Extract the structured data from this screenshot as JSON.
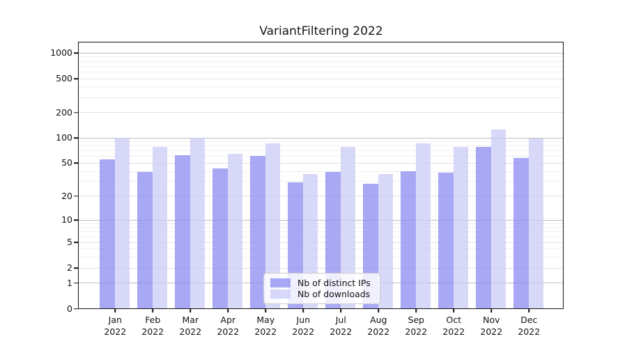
{
  "chart_data": {
    "type": "bar",
    "title": "VariantFiltering 2022",
    "categories": [
      "Jan",
      "Feb",
      "Mar",
      "Apr",
      "May",
      "Jun",
      "Jul",
      "Aug",
      "Sep",
      "Oct",
      "Nov",
      "Dec"
    ],
    "year_label": "2022",
    "series": [
      {
        "name": "Nb of distinct IPs",
        "color": "#8B8BF0",
        "alpha": 0.75,
        "values": [
          55,
          39,
          62,
          43,
          61,
          29,
          39,
          28,
          40,
          38,
          77,
          57
        ]
      },
      {
        "name": "Nb of downloads",
        "color": "#CBCBF7",
        "alpha": 0.75,
        "values": [
          100,
          77,
          100,
          64,
          85,
          37,
          77,
          37,
          85,
          77,
          124,
          97
        ]
      }
    ],
    "y_axis": {
      "ticks": [
        0,
        1,
        2,
        5,
        10,
        20,
        50,
        100,
        200,
        500,
        1000
      ],
      "scale": "log10(value+1)",
      "range_top_value": 1320,
      "major_gridline_values": [
        1,
        10,
        100,
        1000
      ]
    },
    "grid": {
      "major_color": "#bdbdbd",
      "labeled_color": "#e2e2e2",
      "minor_color": "#efefef",
      "minor_multipliers": [
        3,
        4,
        6,
        7,
        8,
        9
      ],
      "minor_decades": [
        1,
        10,
        100
      ]
    },
    "legend_position": "lower-center"
  }
}
